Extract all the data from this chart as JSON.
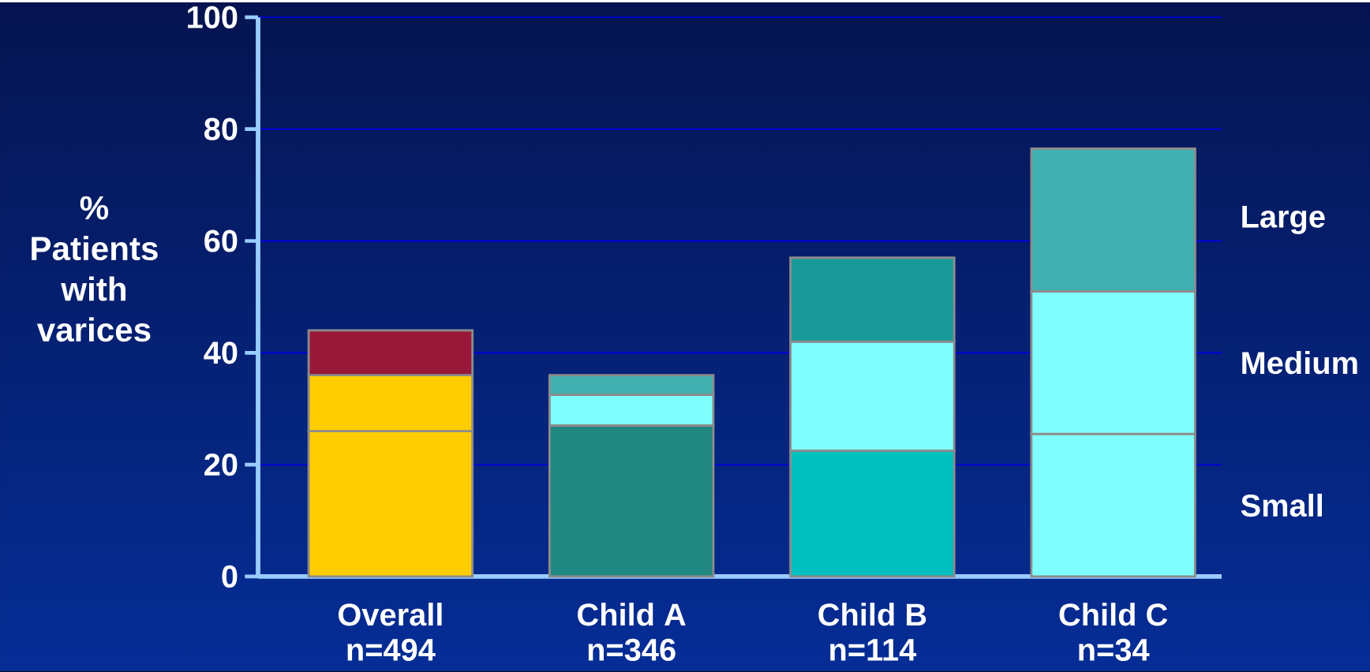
{
  "chart_data": {
    "type": "bar",
    "stacked": true,
    "ylabel": "% Patients with varices",
    "categories": [
      "Overall n=494",
      "Child A n=346",
      "Child B n=114",
      "Child C n=34"
    ],
    "series": [
      {
        "name": "Small",
        "colors": [
          "#ffcc00",
          "#218781",
          "#00bfbf",
          "#80ffff"
        ],
        "values": [
          26,
          27,
          22.5,
          25.5
        ]
      },
      {
        "name": "Medium",
        "colors": [
          "#ffcc00",
          "#80ffff",
          "#80ffff",
          "#80ffff"
        ],
        "values": [
          10,
          5.5,
          19.5,
          25.5
        ]
      },
      {
        "name": "Large",
        "colors": [
          "#99183a",
          "#40b0b0",
          "#1a9999",
          "#40b0b0"
        ],
        "values": [
          8,
          3.5,
          15,
          25.5
        ]
      }
    ],
    "ylim": [
      0,
      100
    ],
    "yticks": [
      0,
      20,
      40,
      60,
      80,
      100
    ],
    "grid": "y"
  }
}
